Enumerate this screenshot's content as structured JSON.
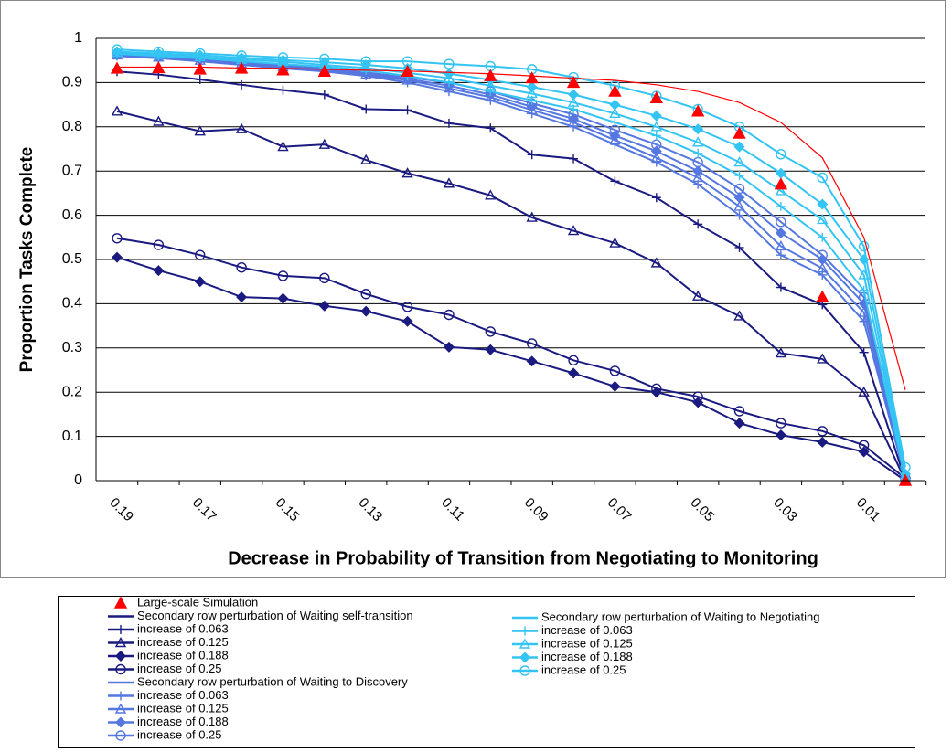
{
  "chart_data": {
    "type": "line",
    "y_label": "Proportion Tasks Complete",
    "x_label": "Decrease in Probability of Transition from Negotiating to Monitoring",
    "categories": [
      "0.19",
      null,
      "0.17",
      null,
      "0.15",
      null,
      "0.13",
      null,
      "0.11",
      null,
      "0.09",
      null,
      "0.07",
      null,
      "0.05",
      null,
      "0.03",
      null,
      "0.01",
      null
    ],
    "ylim": [
      0,
      1
    ],
    "yticks": [
      0,
      0.1,
      0.2,
      0.3,
      0.4,
      0.5,
      0.6,
      0.7,
      0.8,
      0.9,
      1
    ],
    "grid": true,
    "groups": [
      {
        "name": "Secondary row perturbation of Waiting self-transition",
        "color": "#1a1a80",
        "column": "left",
        "series": [
          {
            "name": "increase of 0.063",
            "marker": "plus",
            "values": [
              0.925,
              0.918,
              0.907,
              0.895,
              0.883,
              0.873,
              0.84,
              0.838,
              0.808,
              0.797,
              0.737,
              0.728,
              0.677,
              0.64,
              0.58,
              0.527,
              0.437,
              0.398,
              0.29,
              0.0
            ]
          },
          {
            "name": "increase of 0.125",
            "marker": "triangle",
            "values": [
              0.835,
              0.812,
              0.79,
              0.795,
              0.755,
              0.76,
              0.725,
              0.695,
              0.672,
              0.645,
              0.595,
              0.565,
              0.537,
              0.492,
              0.417,
              0.372,
              0.288,
              0.275,
              0.2,
              0.0
            ]
          },
          {
            "name": "increase of 0.188",
            "marker": "diamond",
            "values": [
              0.505,
              0.475,
              0.45,
              0.415,
              0.412,
              0.395,
              0.383,
              0.36,
              0.302,
              0.296,
              0.27,
              0.243,
              0.213,
              0.2,
              0.177,
              0.13,
              0.103,
              0.087,
              0.065,
              0.0
            ]
          },
          {
            "name": "increase of 0.25",
            "marker": "circle",
            "values": [
              0.548,
              0.533,
              0.51,
              0.482,
              0.463,
              0.458,
              0.422,
              0.393,
              0.375,
              0.337,
              0.31,
              0.272,
              0.248,
              0.208,
              0.19,
              0.157,
              0.13,
              0.112,
              0.08,
              0.005
            ]
          }
        ]
      },
      {
        "name": "Secondary row perturbation of Waiting to Discovery",
        "color": "#5577e0",
        "column": "left",
        "series": [
          {
            "name": "increase of 0.063",
            "marker": "plus",
            "values": [
              0.96,
              0.955,
              0.948,
              0.94,
              0.932,
              0.925,
              0.915,
              0.9,
              0.88,
              0.86,
              0.83,
              0.8,
              0.76,
              0.72,
              0.67,
              0.6,
              0.51,
              0.465,
              0.36,
              0.005
            ]
          },
          {
            "name": "increase of 0.125",
            "marker": "triangle",
            "values": [
              0.962,
              0.957,
              0.95,
              0.943,
              0.935,
              0.928,
              0.918,
              0.905,
              0.887,
              0.867,
              0.838,
              0.81,
              0.77,
              0.73,
              0.685,
              0.62,
              0.53,
              0.48,
              0.38,
              0.005
            ]
          },
          {
            "name": "increase of 0.188",
            "marker": "diamond",
            "values": [
              0.963,
              0.958,
              0.952,
              0.945,
              0.937,
              0.93,
              0.92,
              0.908,
              0.893,
              0.873,
              0.845,
              0.818,
              0.78,
              0.745,
              0.7,
              0.64,
              0.56,
              0.5,
              0.4,
              0.005
            ]
          },
          {
            "name": "increase of 0.25",
            "marker": "circle",
            "values": [
              0.965,
              0.96,
              0.955,
              0.948,
              0.94,
              0.933,
              0.923,
              0.912,
              0.9,
              0.88,
              0.853,
              0.828,
              0.793,
              0.76,
              0.72,
              0.66,
              0.585,
              0.51,
              0.415,
              0.005
            ]
          }
        ]
      },
      {
        "name": "Secondary row perturbation of Waiting to Negotiating",
        "color": "#33c4f4",
        "column": "right",
        "series": [
          {
            "name": "increase of 0.063",
            "marker": "plus",
            "values": [
              0.965,
              0.96,
              0.955,
              0.948,
              0.942,
              0.936,
              0.928,
              0.915,
              0.9,
              0.88,
              0.86,
              0.84,
              0.81,
              0.78,
              0.74,
              0.69,
              0.62,
              0.55,
              0.43,
              0.005
            ]
          },
          {
            "name": "increase of 0.125",
            "marker": "triangle",
            "values": [
              0.968,
              0.963,
              0.958,
              0.952,
              0.947,
              0.94,
              0.933,
              0.922,
              0.91,
              0.893,
              0.875,
              0.855,
              0.83,
              0.8,
              0.765,
              0.72,
              0.655,
              0.59,
              0.465,
              0.01
            ]
          },
          {
            "name": "increase of 0.188",
            "marker": "diamond",
            "values": [
              0.97,
              0.966,
              0.962,
              0.956,
              0.951,
              0.946,
              0.94,
              0.932,
              0.92,
              0.906,
              0.89,
              0.873,
              0.85,
              0.825,
              0.795,
              0.755,
              0.695,
              0.625,
              0.5,
              0.015
            ]
          },
          {
            "name": "increase of 0.25",
            "marker": "circle",
            "values": [
              0.975,
              0.97,
              0.966,
              0.961,
              0.957,
              0.954,
              0.948,
              0.948,
              0.942,
              0.937,
              0.93,
              0.912,
              0.893,
              0.87,
              0.84,
              0.8,
              0.738,
              0.685,
              0.53,
              0.03
            ]
          }
        ]
      }
    ],
    "simulation_line": {
      "color": "#ff0000",
      "values": [
        0.935,
        0.935,
        0.935,
        0.933,
        0.932,
        0.93,
        0.928,
        0.926,
        0.923,
        0.92,
        0.915,
        0.91,
        0.905,
        0.895,
        0.88,
        0.855,
        0.81,
        0.73,
        0.55,
        0.205
      ]
    },
    "simulation": {
      "name": "Large-scale Simulation",
      "color": "#ff0000",
      "marker": "filled-triangle",
      "values": [
        0.932,
        0.933,
        0.93,
        0.932,
        0.928,
        0.925,
        null,
        0.925,
        null,
        0.915,
        0.91,
        0.9,
        0.88,
        0.865,
        0.835,
        0.785,
        0.67,
        0.415,
        null,
        0.0
      ]
    }
  }
}
